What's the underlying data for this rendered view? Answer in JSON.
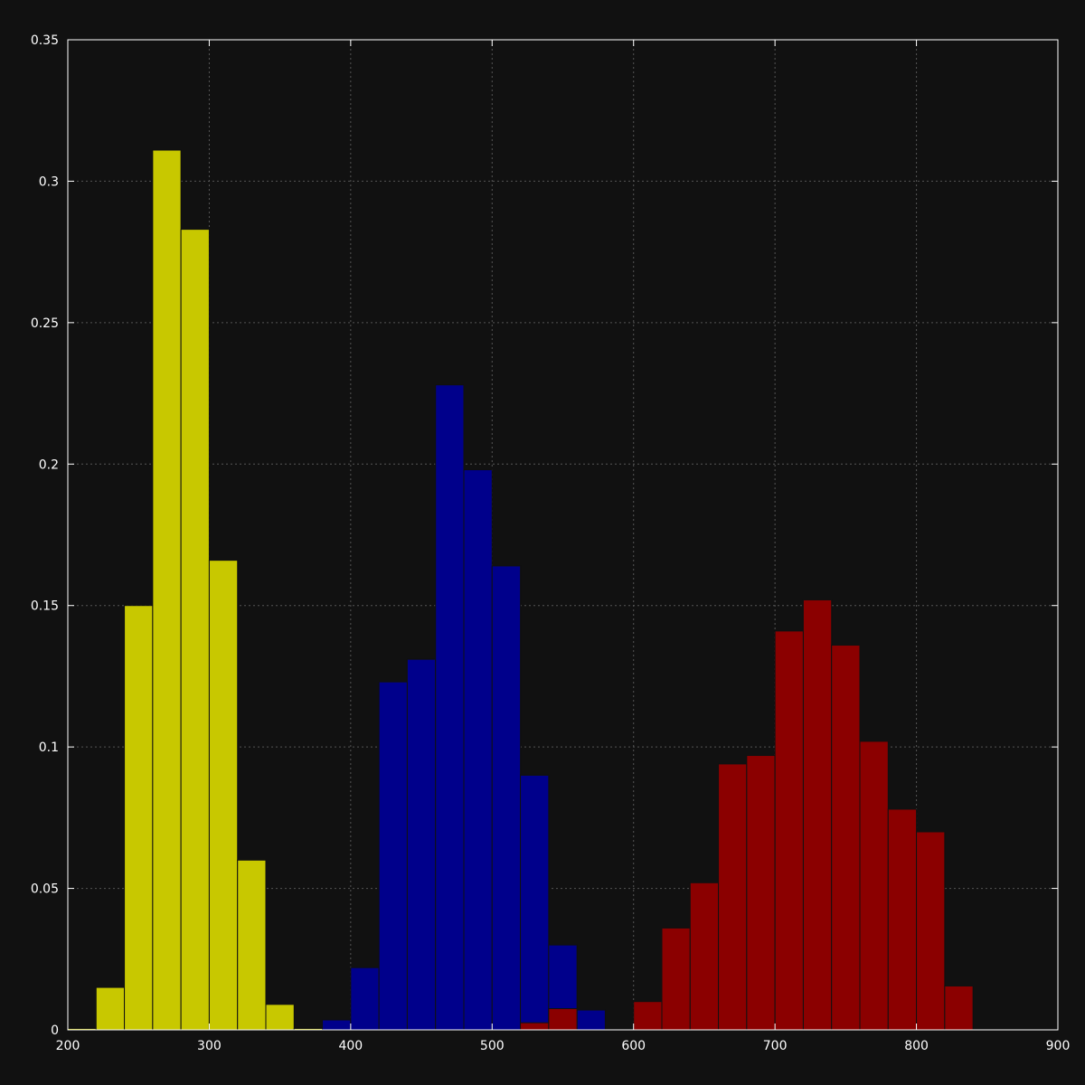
{
  "chart_data": {
    "type": "bar",
    "title": "",
    "xlabel": "",
    "ylabel": "",
    "xlim": [
      200,
      900
    ],
    "ylim": [
      0,
      0.35
    ],
    "bin_width": 20,
    "grid": true,
    "legend": "none",
    "x_ticks": [
      "200",
      "300",
      "400",
      "500",
      "600",
      "700",
      "800",
      "900"
    ],
    "y_ticks": [
      "0",
      "0.05",
      "0.1",
      "0.15",
      "0.2",
      "0.25",
      "0.3",
      "0.35"
    ],
    "series": [
      {
        "color": "#c8c800",
        "bins": [
          {
            "x": 200,
            "y": 0.0005
          },
          {
            "x": 220,
            "y": 0.015
          },
          {
            "x": 240,
            "y": 0.15
          },
          {
            "x": 260,
            "y": 0.311
          },
          {
            "x": 280,
            "y": 0.283
          },
          {
            "x": 300,
            "y": 0.166
          },
          {
            "x": 320,
            "y": 0.06
          },
          {
            "x": 340,
            "y": 0.009
          },
          {
            "x": 360,
            "y": 0.0005
          }
        ]
      },
      {
        "color": "#00008b",
        "bins": [
          {
            "x": 380,
            "y": 0.0035
          },
          {
            "x": 400,
            "y": 0.022
          },
          {
            "x": 420,
            "y": 0.123
          },
          {
            "x": 440,
            "y": 0.131
          },
          {
            "x": 460,
            "y": 0.228
          },
          {
            "x": 480,
            "y": 0.198
          },
          {
            "x": 500,
            "y": 0.164
          },
          {
            "x": 520,
            "y": 0.09
          },
          {
            "x": 540,
            "y": 0.03
          },
          {
            "x": 560,
            "y": 0.007
          }
        ]
      },
      {
        "color": "#8b0000",
        "bins": [
          {
            "x": 520,
            "y": 0.0025
          },
          {
            "x": 540,
            "y": 0.0075
          },
          {
            "x": 600,
            "y": 0.01
          },
          {
            "x": 620,
            "y": 0.036
          },
          {
            "x": 640,
            "y": 0.052
          },
          {
            "x": 660,
            "y": 0.094
          },
          {
            "x": 680,
            "y": 0.097
          },
          {
            "x": 700,
            "y": 0.141
          },
          {
            "x": 720,
            "y": 0.152
          },
          {
            "x": 740,
            "y": 0.136
          },
          {
            "x": 760,
            "y": 0.102
          },
          {
            "x": 780,
            "y": 0.078
          },
          {
            "x": 800,
            "y": 0.07
          },
          {
            "x": 820,
            "y": 0.0155
          }
        ]
      }
    ]
  }
}
